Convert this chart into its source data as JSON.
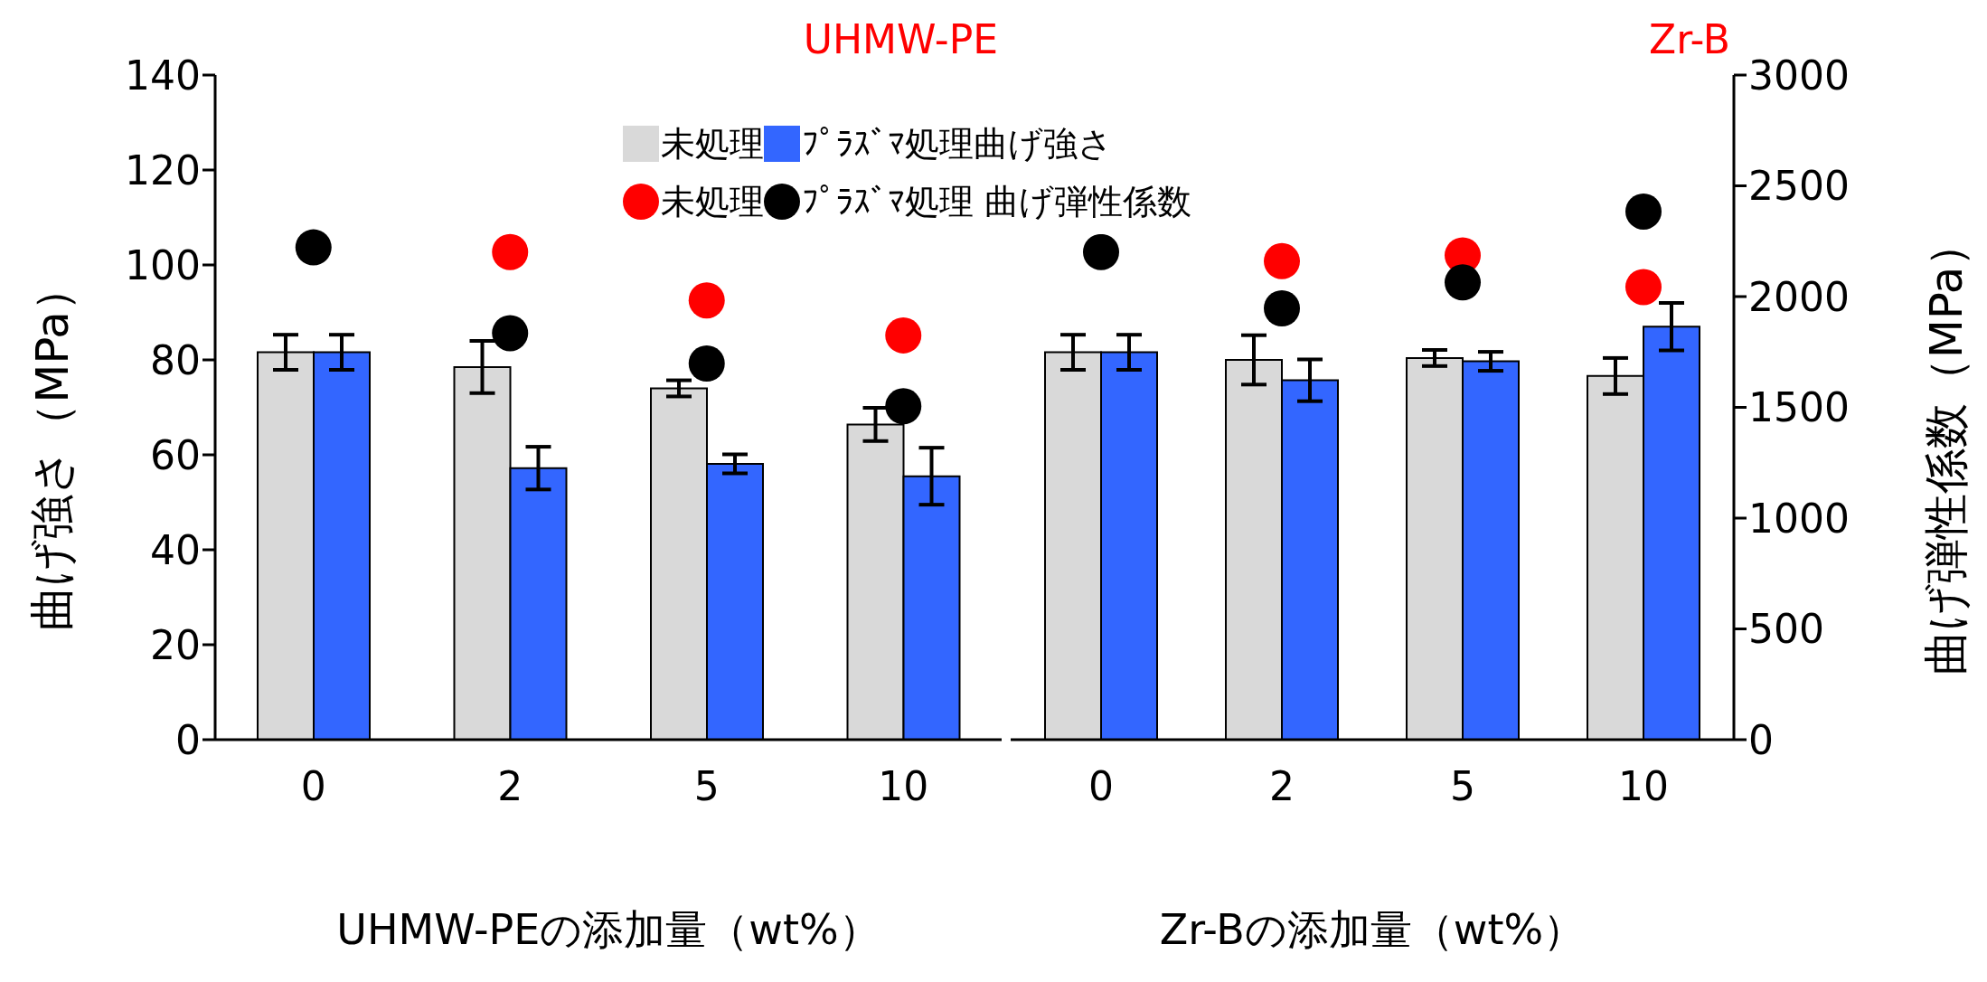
{
  "chart_data": [
    {
      "type": "bar",
      "title": "UHMW-PE",
      "xlabel": "UHMW-PEの添加量（wt%）",
      "ylabel": "曲げ強さ（MPa）",
      "categories": [
        "0",
        "2",
        "5",
        "10"
      ],
      "series": [
        {
          "name": "未処理",
          "color": "#d9d9d9",
          "values": [
            81.6,
            78.5,
            74.0,
            66.4
          ],
          "errors": [
            3.7,
            5.5,
            1.7,
            3.5
          ]
        },
        {
          "name": "ﾌﾟﾗｽﾞﾏ処理曲げ強さ",
          "color": "#3366ff",
          "values": [
            81.6,
            57.2,
            58.1,
            55.5
          ],
          "errors": [
            3.7,
            4.5,
            2,
            6
          ]
        },
        {
          "name": "未処理",
          "type": "scatter",
          "axis": "y2",
          "color": "#ff0000",
          "x": [
            "0",
            "2",
            "5",
            "10"
          ],
          "values": [
            null,
            2201,
            1983,
            1825
          ]
        },
        {
          "name": "ﾌﾟﾗｽﾞﾏ処理 曲げ弾性係数",
          "type": "scatter",
          "axis": "y2",
          "color": "#000000",
          "x": [
            "0",
            "2",
            "5",
            "10"
          ],
          "values": [
            2222,
            1835,
            1698,
            1505
          ]
        }
      ],
      "ylim": [
        0,
        140
      ],
      "yticks": [
        0,
        20,
        40,
        60,
        80,
        100,
        120,
        140
      ],
      "y2lim": [
        0,
        3000
      ],
      "legend": "top",
      "marker": "circle",
      "tick_labels": [
        "x",
        "y"
      ]
    },
    {
      "type": "bar",
      "title": "Zr-B",
      "xlabel": "Zr-Bの添加量（wt%）",
      "y2label": "曲げ弾性係数（MPa）",
      "categories": [
        "0",
        "2",
        "5",
        "10"
      ],
      "series": [
        {
          "color": "#d9d9d9",
          "values": [
            81.6,
            80.0,
            80.4,
            76.6
          ],
          "errors": [
            3.7,
            5.2,
            1.7,
            3.8
          ]
        },
        {
          "color": "#3366ff",
          "values": [
            81.6,
            75.7,
            79.7,
            87.0
          ],
          "errors": [
            3.7,
            4.4,
            2,
            5
          ]
        },
        {
          "type": "scatter",
          "axis": "y2",
          "color": "#ff0000",
          "x": [
            "0",
            "2",
            "5",
            "10"
          ],
          "values": [
            null,
            2160,
            2186,
            2043
          ]
        },
        {
          "type": "scatter",
          "axis": "y2",
          "color": "#000000",
          "x": [
            "0",
            "2",
            "5",
            "10"
          ],
          "values": [
            2201,
            1947,
            2064,
            2384
          ]
        }
      ],
      "ylim": [
        0,
        140
      ],
      "y2lim": [
        0,
        3000
      ],
      "y2ticks": [
        0,
        500,
        1000,
        1500,
        2000,
        2500,
        3000
      ],
      "legend": false,
      "marker": "circle",
      "tick_labels": [
        "x",
        "y2"
      ]
    }
  ]
}
